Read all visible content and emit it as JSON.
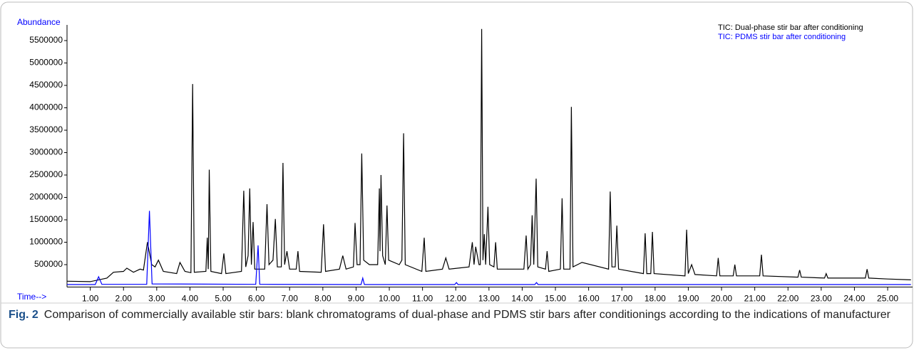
{
  "chart_data": {
    "type": "line",
    "y_label": "Abundance",
    "x_label": "Time-->",
    "caption_label": "Fig. 2",
    "caption": "Comparison of commercially available stir bars: blank chromatograms of dual-phase and PDMS stir bars after conditionings according to the indications of manufacturer",
    "legend": "top-right",
    "xlim": [
      0.3,
      25.75
    ],
    "ylim": [
      0,
      5850000
    ],
    "yticks": [
      500000,
      1000000,
      1500000,
      2000000,
      2500000,
      3000000,
      3500000,
      4000000,
      4500000,
      5000000,
      5500000
    ],
    "xticks": [
      {
        "value": 1,
        "label": "1.00"
      },
      {
        "value": 2,
        "label": "2.00"
      },
      {
        "value": 3,
        "label": "3.00"
      },
      {
        "value": 4,
        "label": "4.00"
      },
      {
        "value": 5,
        "label": "5.00"
      },
      {
        "value": 6,
        "label": "6.00"
      },
      {
        "value": 7,
        "label": "7.00"
      },
      {
        "value": 8,
        "label": "8.00"
      },
      {
        "value": 9,
        "label": "9.00"
      },
      {
        "value": 10,
        "label": "10.00"
      },
      {
        "value": 11,
        "label": "11.00"
      },
      {
        "value": 12,
        "label": "12.00"
      },
      {
        "value": 13,
        "label": "13.00"
      },
      {
        "value": 14,
        "label": "14.00"
      },
      {
        "value": 15,
        "label": "15.00"
      },
      {
        "value": 16,
        "label": "16.00"
      },
      {
        "value": 17,
        "label": "17.00"
      },
      {
        "value": 18,
        "label": "18.00"
      },
      {
        "value": 19,
        "label": "19.00"
      },
      {
        "value": 20,
        "label": "20.00"
      },
      {
        "value": 21,
        "label": "21.00"
      },
      {
        "value": 22,
        "label": "22.00"
      },
      {
        "value": 23,
        "label": "23.00"
      },
      {
        "value": 24,
        "label": "24.00"
      },
      {
        "value": 25,
        "label": "25.00"
      }
    ],
    "series": [
      {
        "name": "TIC: Dual-phase stir bar after conditioning",
        "color": "#000000",
        "x": [
          0.3,
          1.0,
          1.5,
          1.7,
          2.0,
          2.1,
          2.3,
          2.5,
          2.6,
          2.72,
          2.85,
          2.95,
          3.05,
          3.2,
          3.6,
          3.7,
          3.85,
          4.03,
          4.08,
          4.13,
          4.48,
          4.52,
          4.55,
          4.58,
          4.63,
          4.95,
          5.02,
          5.08,
          5.55,
          5.62,
          5.68,
          5.75,
          5.8,
          5.85,
          5.9,
          5.95,
          6.25,
          6.32,
          6.38,
          6.5,
          6.57,
          6.63,
          6.75,
          6.8,
          6.85,
          6.92,
          7.0,
          7.2,
          7.25,
          7.3,
          7.95,
          8.02,
          8.08,
          8.5,
          8.6,
          8.7,
          8.92,
          8.97,
          9.03,
          9.12,
          9.17,
          9.23,
          9.4,
          9.65,
          9.7,
          9.72,
          9.75,
          9.8,
          9.88,
          9.93,
          9.98,
          10.3,
          10.38,
          10.43,
          10.48,
          10.98,
          11.05,
          11.1,
          11.6,
          11.7,
          11.8,
          12.4,
          12.5,
          12.55,
          12.6,
          12.7,
          12.74,
          12.78,
          12.82,
          12.86,
          12.9,
          12.97,
          13.02,
          13.15,
          13.2,
          13.25,
          14.05,
          14.12,
          14.17,
          14.25,
          14.3,
          14.35,
          14.42,
          14.47,
          14.7,
          14.75,
          14.8,
          15.15,
          15.2,
          15.25,
          15.44,
          15.48,
          15.53,
          15.8,
          16.6,
          16.65,
          16.7,
          16.8,
          16.85,
          16.9,
          17.65,
          17.7,
          17.75,
          17.87,
          17.92,
          17.97,
          18.9,
          18.95,
          19.0,
          19.1,
          19.2,
          19.85,
          19.9,
          19.95,
          20.35,
          20.4,
          20.45,
          21.15,
          21.2,
          21.25,
          22.3,
          22.35,
          22.4,
          23.1,
          23.15,
          23.2,
          24.33,
          24.38,
          24.43,
          25.0,
          25.7
        ],
        "values": [
          130000,
          120000,
          200000,
          330000,
          350000,
          420000,
          330000,
          400000,
          380000,
          1000000,
          500000,
          450000,
          600000,
          350000,
          300000,
          550000,
          350000,
          320000,
          4530000,
          330000,
          350000,
          1100000,
          400000,
          2620000,
          350000,
          300000,
          750000,
          300000,
          350000,
          2150000,
          450000,
          700000,
          2200000,
          500000,
          1450000,
          400000,
          400000,
          1850000,
          500000,
          600000,
          1520000,
          450000,
          450000,
          2770000,
          500000,
          800000,
          400000,
          400000,
          800000,
          350000,
          330000,
          1400000,
          350000,
          400000,
          700000,
          400000,
          450000,
          1430000,
          500000,
          500000,
          2980000,
          600000,
          500000,
          500000,
          2200000,
          800000,
          2500000,
          700000,
          500000,
          1820000,
          600000,
          500000,
          600000,
          3430000,
          500000,
          350000,
          1100000,
          350000,
          400000,
          650000,
          400000,
          450000,
          1000000,
          500000,
          900000,
          500000,
          500000,
          5760000,
          600000,
          1180000,
          500000,
          1790000,
          500000,
          450000,
          1000000,
          400000,
          400000,
          1150000,
          400000,
          500000,
          1600000,
          500000,
          2420000,
          450000,
          400000,
          800000,
          350000,
          400000,
          1980000,
          400000,
          400000,
          4020000,
          450000,
          550000,
          400000,
          2130000,
          450000,
          450000,
          1370000,
          400000,
          300000,
          1200000,
          300000,
          300000,
          1230000,
          300000,
          250000,
          1280000,
          300000,
          500000,
          280000,
          250000,
          650000,
          250000,
          250000,
          500000,
          250000,
          250000,
          720000,
          250000,
          220000,
          380000,
          220000,
          200000,
          300000,
          200000,
          200000,
          400000,
          200000,
          180000,
          160000
        ]
      },
      {
        "name": "TIC: PDMS stir bar after conditioning",
        "color": "#0000ff",
        "x": [
          0.3,
          1.15,
          1.25,
          1.35,
          2.7,
          2.78,
          2.86,
          5.98,
          6.05,
          6.1,
          9.15,
          9.2,
          9.25,
          11.97,
          12.02,
          12.07,
          14.38,
          14.43,
          14.48,
          25.7
        ],
        "values": [
          55000,
          55000,
          230000,
          60000,
          60000,
          1700000,
          70000,
          60000,
          930000,
          60000,
          55000,
          200000,
          55000,
          55000,
          100000,
          55000,
          55000,
          100000,
          55000,
          55000
        ]
      }
    ]
  }
}
